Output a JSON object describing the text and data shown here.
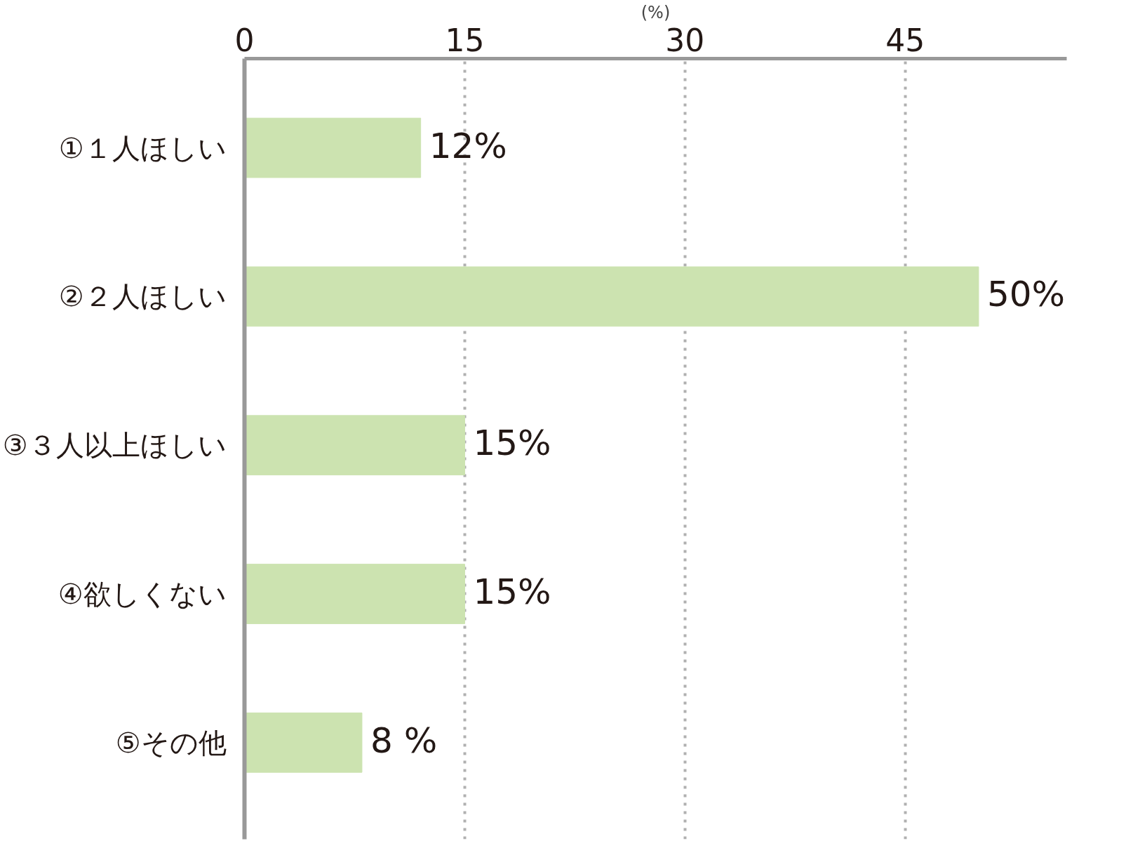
{
  "chart_data": {
    "type": "bar",
    "orientation": "horizontal",
    "xlabel": "(%)",
    "categories": [
      "①１人ほしい",
      "②２人ほしい",
      "③３人以上ほしい",
      "④欲しくない",
      "⑤その他"
    ],
    "values": [
      12,
      50,
      15,
      15,
      8
    ],
    "value_labels": [
      "12%",
      "50%",
      "15%",
      "15%",
      "8 %"
    ],
    "color": "#cce3b0",
    "xlim": [
      0,
      56
    ],
    "xticks": [
      0,
      15,
      30,
      45
    ],
    "grid": "x"
  }
}
